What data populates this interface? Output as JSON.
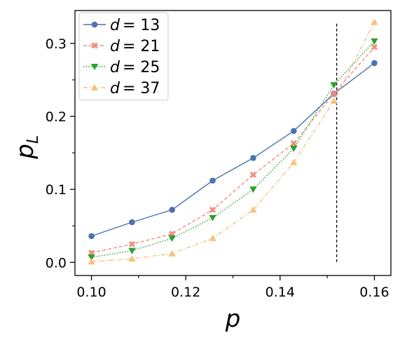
{
  "chart_data": {
    "type": "line",
    "xlabel": "p",
    "ylabel": "p",
    "ylabel_subscript": "L",
    "xlim": [
      0.0965,
      0.1635
    ],
    "ylim": [
      -0.018,
      0.345
    ],
    "x_ticks": [
      0.1,
      0.12,
      0.14,
      0.16
    ],
    "x_tick_labels": [
      "0.10",
      "0.12",
      "0.14",
      "0.16"
    ],
    "x_minor_ticks": [
      0.11,
      0.13,
      0.15
    ],
    "y_ticks": [
      0.0,
      0.1,
      0.2,
      0.3
    ],
    "y_tick_labels": [
      "0.0",
      "0.1",
      "0.2",
      "0.3"
    ],
    "y_minor_ticks": [
      0.05,
      0.15,
      0.25
    ],
    "grid": false,
    "legend_position": "top-left",
    "x": [
      0.1,
      0.1086,
      0.1171,
      0.1257,
      0.1343,
      0.1429,
      0.1514,
      0.16
    ],
    "series": [
      {
        "name": "d = 13",
        "legend_var": "d",
        "legend_value": "= 13",
        "color": "#4c72b0",
        "marker": "circle",
        "dash": "solid",
        "values": [
          0.036,
          0.055,
          0.072,
          0.112,
          0.143,
          0.18,
          0.231,
          0.273
        ]
      },
      {
        "name": "d = 21",
        "legend_var": "d",
        "legend_value": "= 21",
        "color": "#f28e82",
        "marker": "x",
        "dash": "dashed",
        "values": [
          0.013,
          0.025,
          0.039,
          0.072,
          0.12,
          0.163,
          0.231,
          0.295
        ]
      },
      {
        "name": "d = 25",
        "legend_var": "d",
        "legend_value": "= 25",
        "color": "#2ca02c",
        "marker": "triangle-down",
        "dash": "dotted",
        "values": [
          0.007,
          0.016,
          0.033,
          0.061,
          0.1,
          0.156,
          0.243,
          0.303
        ]
      },
      {
        "name": "d = 37",
        "legend_var": "d",
        "legend_value": "= 37",
        "color": "#f7c27b",
        "marker": "triangle-up",
        "dash": "dashdot",
        "values": [
          0.001,
          0.005,
          0.012,
          0.033,
          0.072,
          0.137,
          0.221,
          0.329
        ]
      }
    ],
    "annotations": [
      {
        "type": "vertical-dashed-line",
        "x": 0.152,
        "y_from": 0.0,
        "y_to": 0.327,
        "color": "#000000"
      }
    ]
  }
}
